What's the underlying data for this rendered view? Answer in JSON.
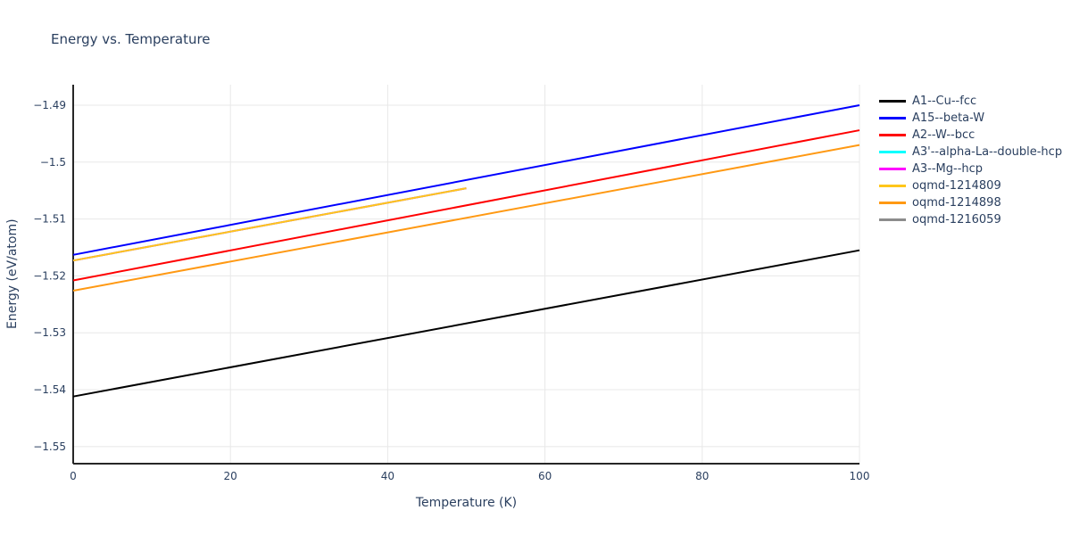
{
  "chart_data": {
    "type": "line",
    "title": "Energy vs. Temperature",
    "xlabel": "Temperature (K)",
    "ylabel": "Energy (eV/atom)",
    "xlim": [
      0,
      100
    ],
    "ylim": [
      -1.553,
      -1.4864
    ],
    "xticks": [
      0,
      20,
      40,
      60,
      80,
      100
    ],
    "xtick_labels": [
      "0",
      "20",
      "40",
      "60",
      "80",
      "100"
    ],
    "yticks": [
      -1.49,
      -1.5,
      -1.51,
      -1.52,
      -1.53,
      -1.54,
      -1.55
    ],
    "ytick_labels": [
      "−1.49",
      "−1.5",
      "−1.51",
      "−1.52",
      "−1.53",
      "−1.54",
      "−1.55"
    ],
    "grid": true,
    "legend_position": "right",
    "colors": {
      "text": "#2a3f5f",
      "grid": "#e8e8e8",
      "axis": "#262626",
      "background": "#ffffff"
    },
    "series": [
      {
        "name": "A1--Cu--fcc",
        "color": "#000000",
        "x": [
          0,
          100
        ],
        "y": [
          -1.5412,
          -1.5155
        ]
      },
      {
        "name": "A15--beta-W",
        "color": "#0000ff",
        "x": [
          0,
          100
        ],
        "y": [
          -1.5163,
          -1.49
        ]
      },
      {
        "name": "A2--W--bcc",
        "color": "#ff0000",
        "x": [
          0,
          100
        ],
        "y": [
          -1.5208,
          -1.4944
        ]
      },
      {
        "name": "A3'--alpha-La--double-hcp",
        "color": "#00ffff",
        "x": [
          0,
          50
        ],
        "y": [
          -1.5173,
          -1.5046
        ]
      },
      {
        "name": "A3--Mg--hcp",
        "color": "#ff00ff",
        "x": [
          0,
          50
        ],
        "y": [
          -1.5173,
          -1.5046
        ]
      },
      {
        "name": "oqmd-1214809",
        "color": "#ffc61a",
        "x": [
          0,
          50
        ],
        "y": [
          -1.5173,
          -1.5046
        ]
      },
      {
        "name": "oqmd-1214898",
        "color": "#ff9913",
        "x": [
          0,
          100
        ],
        "y": [
          -1.5226,
          -1.497
        ]
      },
      {
        "name": "oqmd-1216059",
        "color": "#8c8c8c",
        "x": [],
        "y": []
      }
    ]
  }
}
